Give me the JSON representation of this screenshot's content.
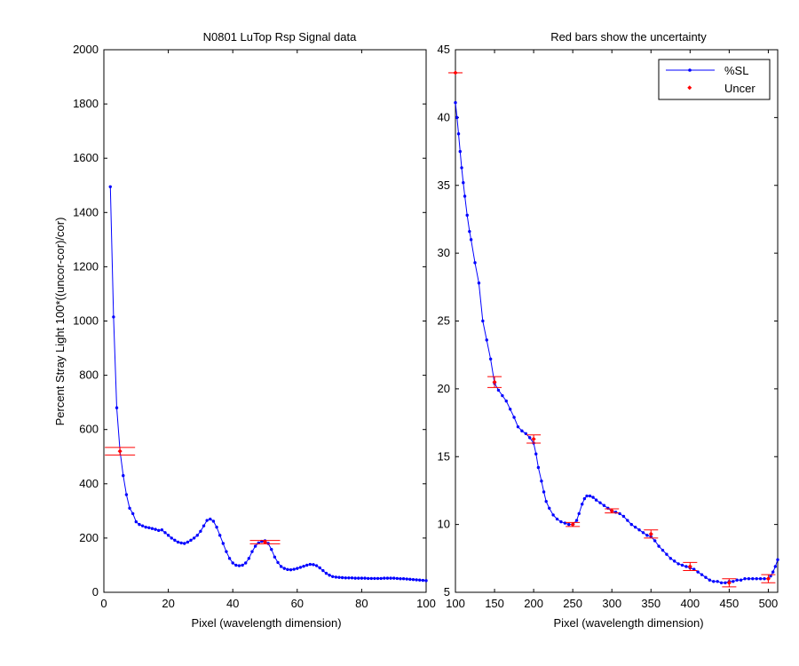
{
  "colors": {
    "line": "#0000ff",
    "uncertainty": "#ff0000",
    "axes": "#000000",
    "background": "#ffffff"
  },
  "chart_data": [
    {
      "type": "line",
      "title": "N0801   LuTop Rsp Signal data",
      "xlabel": "Pixel (wavelength dimension)",
      "ylabel": "Percent Stray Light 100*((uncor-cor)/cor)",
      "xlim": [
        0,
        100
      ],
      "ylim": [
        0,
        2000
      ],
      "xticks": [
        0,
        20,
        40,
        60,
        80,
        100
      ],
      "yticks": [
        0,
        200,
        400,
        600,
        800,
        1000,
        1200,
        1400,
        1600,
        1800,
        2000
      ],
      "grid": false,
      "series": [
        {
          "name": "%SL",
          "style": "line-with-point-markers",
          "x": [
            2,
            3,
            4,
            5,
            6,
            7,
            8,
            9,
            10,
            11,
            12,
            13,
            14,
            15,
            16,
            17,
            18,
            19,
            20,
            21,
            22,
            23,
            24,
            25,
            26,
            27,
            28,
            29,
            30,
            31,
            32,
            33,
            34,
            35,
            36,
            37,
            38,
            39,
            40,
            41,
            42,
            43,
            44,
            45,
            46,
            47,
            48,
            49,
            50,
            51,
            52,
            53,
            54,
            55,
            56,
            57,
            58,
            59,
            60,
            61,
            62,
            63,
            64,
            65,
            66,
            67,
            68,
            69,
            70,
            71,
            72,
            73,
            74,
            75,
            76,
            77,
            78,
            79,
            80,
            81,
            82,
            83,
            84,
            85,
            86,
            87,
            88,
            89,
            90,
            91,
            92,
            93,
            94,
            95,
            96,
            97,
            98,
            99,
            100
          ],
          "y": [
            1495,
            1015,
            680,
            520,
            430,
            360,
            310,
            290,
            260,
            250,
            245,
            240,
            238,
            235,
            232,
            228,
            230,
            220,
            210,
            200,
            192,
            185,
            182,
            180,
            185,
            192,
            200,
            210,
            225,
            245,
            265,
            270,
            262,
            240,
            210,
            180,
            150,
            125,
            108,
            100,
            98,
            100,
            108,
            125,
            150,
            170,
            182,
            188,
            190,
            180,
            158,
            130,
            110,
            95,
            88,
            84,
            83,
            85,
            88,
            92,
            96,
            100,
            103,
            102,
            98,
            90,
            80,
            70,
            63,
            58,
            56,
            55,
            54,
            53,
            53,
            53,
            52,
            52,
            52,
            52,
            51,
            51,
            51,
            51,
            51,
            52,
            52,
            52,
            52,
            51,
            50,
            50,
            49,
            48,
            47,
            46,
            45,
            44,
            43
          ]
        }
      ],
      "uncertainty": [
        {
          "x": 5,
          "y": 520,
          "err": 14
        },
        {
          "x": 50,
          "y": 185,
          "err": 6
        }
      ]
    },
    {
      "type": "line",
      "title": "Red bars show the uncertainty",
      "xlabel": "Pixel (wavelength dimension)",
      "ylabel": "",
      "xlim": [
        100,
        512
      ],
      "ylim": [
        5,
        45
      ],
      "xticks": [
        100,
        150,
        200,
        250,
        300,
        350,
        400,
        450,
        500
      ],
      "yticks": [
        5,
        10,
        15,
        20,
        25,
        30,
        35,
        40,
        45
      ],
      "grid": false,
      "legend_position": "top-right",
      "legend": [
        "%SL",
        "Uncer"
      ],
      "series": [
        {
          "name": "%SL",
          "style": "line-with-point-markers",
          "x": [
            100,
            102,
            104,
            106,
            108,
            110,
            112,
            115,
            118,
            120,
            125,
            130,
            135,
            140,
            145,
            150,
            155,
            160,
            165,
            170,
            175,
            180,
            185,
            190,
            195,
            200,
            203,
            206,
            210,
            213,
            216,
            220,
            225,
            230,
            235,
            240,
            245,
            250,
            255,
            258,
            262,
            265,
            268,
            272,
            276,
            280,
            285,
            290,
            295,
            300,
            305,
            310,
            315,
            320,
            325,
            330,
            335,
            340,
            345,
            350,
            355,
            360,
            365,
            370,
            375,
            380,
            385,
            390,
            395,
            400,
            405,
            410,
            415,
            420,
            425,
            430,
            435,
            440,
            445,
            450,
            455,
            460,
            465,
            470,
            475,
            480,
            485,
            490,
            495,
            500,
            503,
            506,
            509,
            512
          ],
          "y": [
            41.1,
            40,
            38.8,
            37.5,
            36.3,
            35.2,
            34.2,
            32.8,
            31.6,
            31.0,
            29.3,
            27.8,
            25.0,
            23.6,
            22.2,
            20.4,
            19.9,
            19.5,
            19.1,
            18.5,
            17.9,
            17.2,
            16.9,
            16.7,
            16.4,
            16.0,
            15.2,
            14.2,
            13.2,
            12.4,
            11.7,
            11.2,
            10.7,
            10.4,
            10.2,
            10.1,
            10.0,
            10.0,
            10.3,
            10.8,
            11.5,
            11.9,
            12.1,
            12.1,
            12.0,
            11.8,
            11.6,
            11.4,
            11.2,
            11.0,
            10.9,
            10.8,
            10.6,
            10.3,
            10.0,
            9.8,
            9.6,
            9.4,
            9.2,
            9.1,
            8.8,
            8.4,
            8.1,
            7.8,
            7.5,
            7.3,
            7.1,
            7.0,
            6.9,
            6.8,
            6.7,
            6.5,
            6.3,
            6.1,
            5.9,
            5.8,
            5.8,
            5.7,
            5.7,
            5.8,
            5.8,
            5.9,
            5.9,
            6.0,
            6.0,
            6.0,
            6.0,
            6.0,
            6.0,
            6.0,
            6.2,
            6.5,
            6.9,
            7.4
          ]
        }
      ],
      "uncertainty": [
        {
          "x": 100,
          "y": 43.3,
          "err": 0
        },
        {
          "x": 150,
          "y": 20.5,
          "err": 0.4
        },
        {
          "x": 200,
          "y": 16.3,
          "err": 0.3
        },
        {
          "x": 250,
          "y": 10.0,
          "err": 0.15
        },
        {
          "x": 300,
          "y": 11.0,
          "err": 0.15
        },
        {
          "x": 350,
          "y": 9.3,
          "err": 0.3
        },
        {
          "x": 400,
          "y": 6.9,
          "err": 0.3
        },
        {
          "x": 450,
          "y": 5.7,
          "err": 0.3
        },
        {
          "x": 500,
          "y": 6.0,
          "err": 0.3
        }
      ]
    }
  ]
}
